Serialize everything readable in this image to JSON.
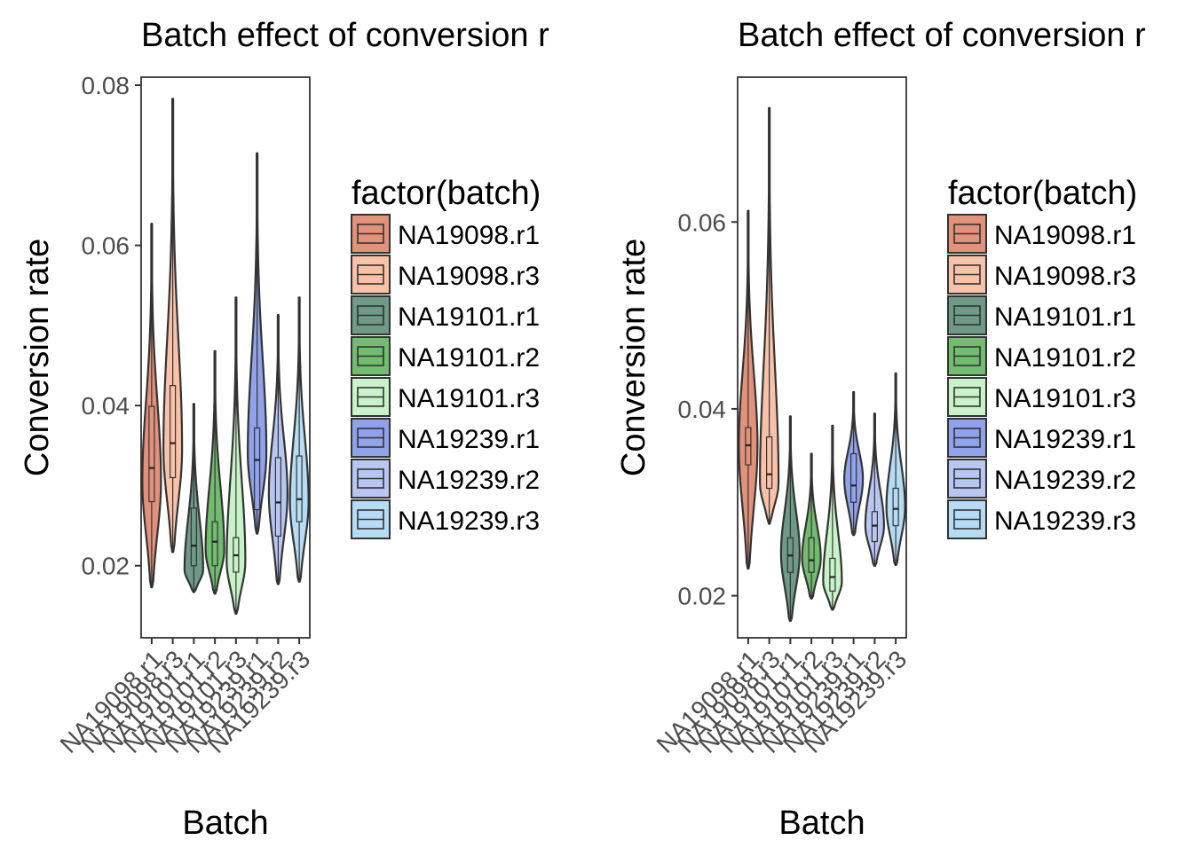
{
  "chart_data": [
    {
      "type": "violin",
      "title": "Batch effect of conversion r",
      "xlabel": "Batch",
      "ylabel": "Conversion rate",
      "ylim": [
        0.011,
        0.081
      ],
      "yticks": [
        0.02,
        0.04,
        0.06,
        0.08
      ],
      "ytick_labels": [
        "0.02",
        "0.04",
        "0.06",
        "0.08"
      ],
      "grid": false,
      "legend_title": "factor(batch)",
      "legend_position": "right",
      "categories": [
        "NA19098.r1",
        "NA19098.r3",
        "NA19101.r1",
        "NA19101.r2",
        "NA19101.r3",
        "NA19239.r1",
        "NA19239.r2",
        "NA19239.r3"
      ],
      "colors": [
        "#e2917a",
        "#f9c2a8",
        "#6f9a85",
        "#72bc70",
        "#c8f2c8",
        "#8fa2ea",
        "#b8c6f2",
        "#b5dcf4"
      ],
      "series": [
        {
          "category": "NA19098.r1",
          "min": 0.0173,
          "q1": 0.028,
          "median": 0.0322,
          "q3": 0.0399,
          "max": 0.0627,
          "density_peak": 0.0305
        },
        {
          "category": "NA19098.r3",
          "min": 0.0217,
          "q1": 0.031,
          "median": 0.0353,
          "q3": 0.0425,
          "max": 0.0783,
          "density_peak": 0.0345
        },
        {
          "category": "NA19101.r1",
          "min": 0.0167,
          "q1": 0.02,
          "median": 0.0225,
          "q3": 0.0272,
          "max": 0.0402,
          "density_peak": 0.0195
        },
        {
          "category": "NA19101.r2",
          "min": 0.0165,
          "q1": 0.02,
          "median": 0.023,
          "q3": 0.0255,
          "max": 0.0468,
          "density_peak": 0.022
        },
        {
          "category": "NA19101.r3",
          "min": 0.014,
          "q1": 0.0192,
          "median": 0.0213,
          "q3": 0.0235,
          "max": 0.0535,
          "density_peak": 0.0205
        },
        {
          "category": "NA19239.r1",
          "min": 0.024,
          "q1": 0.027,
          "median": 0.0332,
          "q3": 0.0372,
          "max": 0.0715,
          "density_peak": 0.034
        },
        {
          "category": "NA19239.r2",
          "min": 0.0177,
          "q1": 0.0237,
          "median": 0.0279,
          "q3": 0.0335,
          "max": 0.0513,
          "density_peak": 0.029
        },
        {
          "category": "NA19239.r3",
          "min": 0.018,
          "q1": 0.0255,
          "median": 0.0283,
          "q3": 0.0337,
          "max": 0.0535,
          "density_peak": 0.028
        }
      ]
    },
    {
      "type": "violin",
      "title": "Batch effect of conversion r",
      "xlabel": "Batch",
      "ylabel": "Conversion rate",
      "ylim": [
        0.0155,
        0.0755
      ],
      "yticks": [
        0.02,
        0.04,
        0.06
      ],
      "ytick_labels": [
        "0.02",
        "0.04",
        "0.06"
      ],
      "grid": false,
      "legend_title": "factor(batch)",
      "legend_position": "right",
      "categories": [
        "NA19098.r1",
        "NA19098.r3",
        "NA19101.r1",
        "NA19101.r2",
        "NA19101.r3",
        "NA19239.r1",
        "NA19239.r2",
        "NA19239.r3"
      ],
      "colors": [
        "#e2917a",
        "#f9c2a8",
        "#6f9a85",
        "#72bc70",
        "#c8f2c8",
        "#8fa2ea",
        "#b8c6f2",
        "#b5dcf4"
      ],
      "series": [
        {
          "category": "NA19098.r1",
          "min": 0.0229,
          "q1": 0.034,
          "median": 0.0361,
          "q3": 0.038,
          "max": 0.0612,
          "density_peak": 0.036
        },
        {
          "category": "NA19098.r3",
          "min": 0.0277,
          "q1": 0.0315,
          "median": 0.033,
          "q3": 0.037,
          "max": 0.0722,
          "density_peak": 0.032
        },
        {
          "category": "NA19101.r1",
          "min": 0.0173,
          "q1": 0.0225,
          "median": 0.0243,
          "q3": 0.0262,
          "max": 0.0392,
          "density_peak": 0.0245
        },
        {
          "category": "NA19101.r2",
          "min": 0.0197,
          "q1": 0.0225,
          "median": 0.0238,
          "q3": 0.0262,
          "max": 0.0352,
          "density_peak": 0.024
        },
        {
          "category": "NA19101.r3",
          "min": 0.0185,
          "q1": 0.0205,
          "median": 0.022,
          "q3": 0.024,
          "max": 0.0382,
          "density_peak": 0.0215
        },
        {
          "category": "NA19239.r1",
          "min": 0.0265,
          "q1": 0.03,
          "median": 0.0318,
          "q3": 0.0352,
          "max": 0.0418,
          "density_peak": 0.0325
        },
        {
          "category": "NA19239.r2",
          "min": 0.0232,
          "q1": 0.0258,
          "median": 0.0275,
          "q3": 0.029,
          "max": 0.0395,
          "density_peak": 0.0275
        },
        {
          "category": "NA19239.r3",
          "min": 0.0233,
          "q1": 0.0275,
          "median": 0.0293,
          "q3": 0.0315,
          "max": 0.0438,
          "density_peak": 0.0295
        }
      ]
    }
  ]
}
